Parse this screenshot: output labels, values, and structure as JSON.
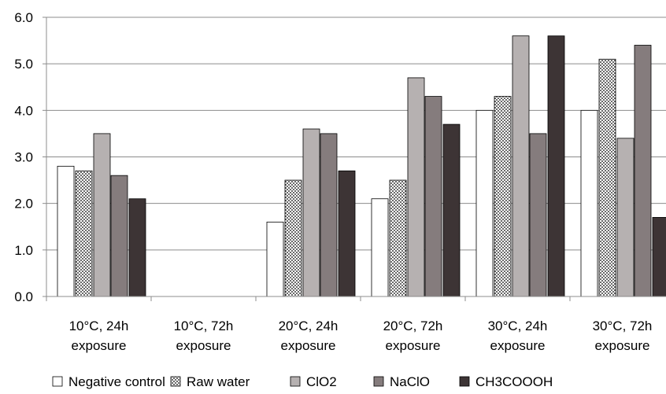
{
  "chart_data": {
    "type": "bar",
    "categories": [
      [
        "10°C, 24h",
        "exposure"
      ],
      [
        "10°C, 72h",
        "exposure"
      ],
      [
        "20°C, 24h",
        "exposure"
      ],
      [
        "20°C, 72h",
        "exposure"
      ],
      [
        "30°C, 24h",
        "exposure"
      ],
      [
        "30°C, 72h",
        "exposure"
      ]
    ],
    "series": [
      {
        "name": "Negative control",
        "pattern": "none",
        "fill": "#ffffff",
        "values": [
          2.8,
          0,
          1.6,
          2.1,
          4.0,
          4.0
        ]
      },
      {
        "name": "Raw water",
        "pattern": "dots",
        "fill": "#ffffff",
        "values": [
          2.7,
          0,
          2.5,
          2.5,
          4.3,
          5.1
        ]
      },
      {
        "name": "ClO2",
        "pattern": "none",
        "fill": "#b6b1b1",
        "values": [
          3.5,
          0,
          3.6,
          4.7,
          5.6,
          3.4
        ]
      },
      {
        "name": "NaClO",
        "pattern": "none",
        "fill": "#857c7d",
        "values": [
          2.6,
          0,
          3.5,
          4.3,
          3.5,
          5.4
        ]
      },
      {
        "name": "CH3COOOH",
        "pattern": "none",
        "fill": "#3d3435",
        "values": [
          2.1,
          0,
          2.7,
          3.7,
          5.6,
          1.7
        ]
      }
    ],
    "yticks": [
      "0.0",
      "1.0",
      "2.0",
      "3.0",
      "4.0",
      "5.0",
      "6.0"
    ],
    "ylim": [
      0,
      6
    ],
    "grid": true,
    "legend_position": "bottom",
    "title": "",
    "xlabel": "",
    "ylabel": ""
  }
}
